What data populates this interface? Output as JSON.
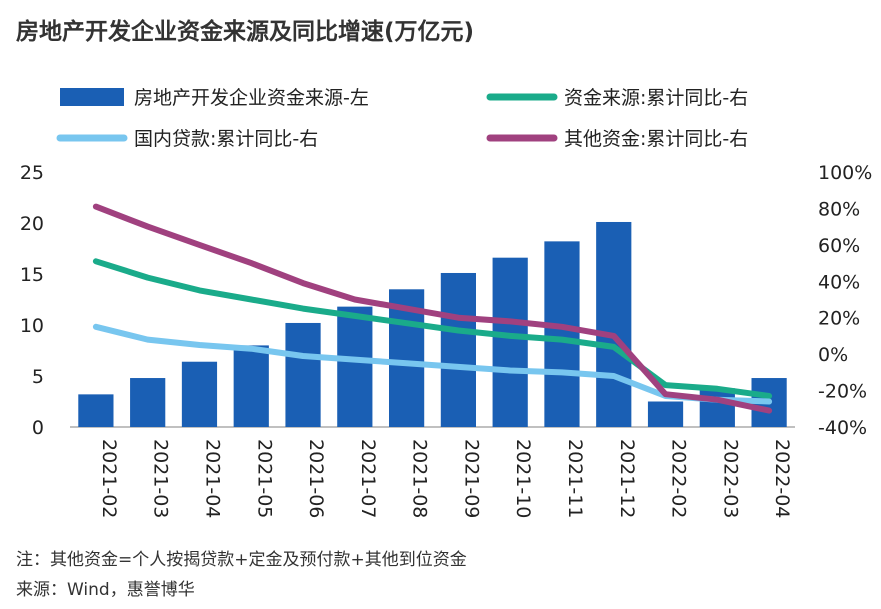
{
  "title": "房地产开发企业资金来源及同比增速(万亿元)",
  "notes": {
    "note": "注：其他资金=个人按揭贷款+定金及预付款+其他到位资金",
    "source": "来源：Wind，惠誉博华"
  },
  "colors": {
    "bar": "#1a5fb4",
    "funds_yoy": "#1aab8a",
    "loans_yoy": "#78c6ef",
    "other_yoy": "#a0417f"
  },
  "chart_data": {
    "type": "bar",
    "categories": [
      "2021-02",
      "2021-03",
      "2021-04",
      "2021-05",
      "2021-06",
      "2021-07",
      "2021-08",
      "2021-09",
      "2021-10",
      "2021-11",
      "2021-12",
      "2022-02",
      "2022-03",
      "2022-04"
    ],
    "bars": {
      "name": "房地产开发企业资金来源-左",
      "values": [
        3.2,
        4.8,
        6.4,
        8.0,
        10.2,
        11.8,
        13.5,
        15.1,
        16.6,
        18.2,
        20.1,
        2.5,
        3.8,
        4.8
      ]
    },
    "series": [
      {
        "name": "资金来源:累计同比-右",
        "colorKey": "funds_yoy",
        "values": [
          51,
          42,
          35,
          30,
          25,
          21,
          17,
          13,
          10,
          8,
          4,
          -17,
          -19,
          -23
        ]
      },
      {
        "name": "国内贷款:累计同比-右",
        "colorKey": "loans_yoy",
        "values": [
          15,
          8,
          5,
          3,
          -1,
          -3,
          -5,
          -7,
          -9,
          -10,
          -12,
          -23,
          -25,
          -26
        ]
      },
      {
        "name": "其他资金:累计同比-右",
        "colorKey": "other_yoy",
        "values": [
          81,
          70,
          60,
          50,
          39,
          30,
          25,
          20,
          18,
          15,
          10,
          -22,
          -25,
          -31
        ]
      }
    ],
    "y_left": {
      "ticks": [
        "0",
        "5",
        "10",
        "15",
        "20",
        "25"
      ],
      "lim": [
        0,
        25
      ]
    },
    "y_right": {
      "ticks": [
        "-40%",
        "-20%",
        "0%",
        "20%",
        "40%",
        "60%",
        "80%",
        "100%"
      ],
      "lim": [
        -40,
        100
      ]
    },
    "legend": [
      {
        "label": "房地产开发企业资金来源-左",
        "kind": "bar",
        "colorKey": "bar"
      },
      {
        "label": "资金来源:累计同比-右",
        "kind": "line",
        "colorKey": "funds_yoy"
      },
      {
        "label": "国内贷款:累计同比-右",
        "kind": "line",
        "colorKey": "loans_yoy"
      },
      {
        "label": "其他资金:累计同比-右",
        "kind": "line",
        "colorKey": "other_yoy"
      }
    ],
    "legend_position": "top",
    "grid": false
  }
}
